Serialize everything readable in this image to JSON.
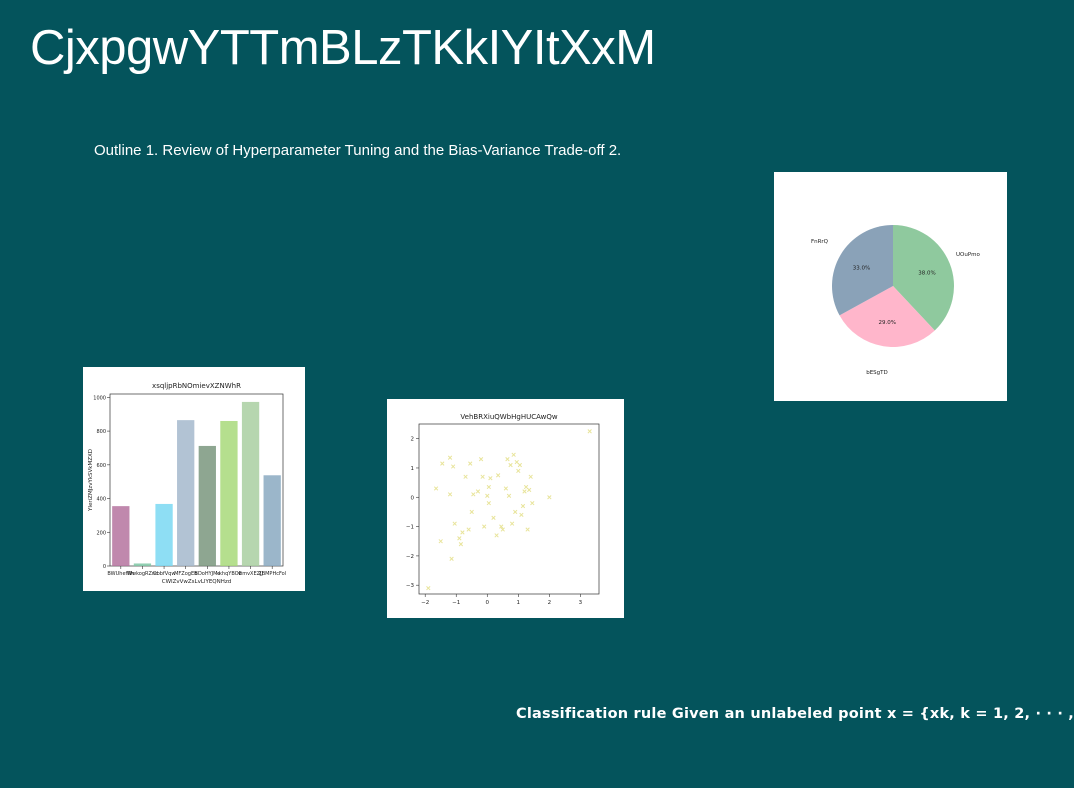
{
  "slide": {
    "title": "CjxpgwYTTmBLzTKkIYItXxM",
    "outline": "Outline 1. Review of Hyperparameter Tuning and the Bias-Variance Trade-off 2.",
    "bottom_text": "Classification rule Given an unlabeled point x = {xk, k = 1, 2, · · · ,"
  },
  "chart_data": [
    {
      "type": "bar",
      "title": "xsqljpRbNOmievXZNWhR",
      "xlabel": "CWIZvVwZsLvLlYEQNHzd",
      "ylabel": "YIeriZMJzvYkSVkMZXD",
      "categories": [
        "BWUhefNh",
        "WwkogRZnc",
        "ObbfVqw",
        "MFZogEb",
        "BDoHYJMs",
        "kkhqYBOE",
        "wmvXEZJJ",
        "ZBMPHcFol"
      ],
      "values": [
        355,
        15,
        368,
        865,
        712,
        860,
        973,
        538
      ],
      "colors": [
        "#b5739f",
        "#7fc7a5",
        "#7ad8f2",
        "#a4b8cc",
        "#7a967e",
        "#a8d97a",
        "#a9cfa1",
        "#8aa9c1"
      ],
      "ylim": [
        0,
        1020
      ],
      "yticks": [
        "0",
        "200",
        "400",
        "600",
        "800",
        "1000"
      ]
    },
    {
      "type": "scatter",
      "title": "VehBRXiuQWbHgHUCAwQw",
      "marker_color": "#e8e49a",
      "xlim": [
        -2.2,
        3.6
      ],
      "ylim": [
        -3.3,
        2.5
      ],
      "xticks": [
        "-2",
        "-1",
        "0",
        "1",
        "2",
        "3"
      ],
      "yticks": [
        "-3",
        "-2",
        "-1",
        "0",
        "1",
        "2"
      ],
      "points": [
        [
          -1.9,
          -3.1
        ],
        [
          -1.65,
          0.3
        ],
        [
          -1.5,
          -1.5
        ],
        [
          -1.45,
          1.15
        ],
        [
          -1.2,
          1.35
        ],
        [
          -1.2,
          0.1
        ],
        [
          -1.15,
          -2.1
        ],
        [
          -1.1,
          1.05
        ],
        [
          -1.05,
          -0.9
        ],
        [
          -0.9,
          -1.4
        ],
        [
          -0.85,
          -1.6
        ],
        [
          -0.8,
          -1.2
        ],
        [
          -0.7,
          0.7
        ],
        [
          -0.6,
          -1.1
        ],
        [
          -0.55,
          1.15
        ],
        [
          -0.5,
          -0.5
        ],
        [
          -0.45,
          0.1
        ],
        [
          -0.3,
          0.2
        ],
        [
          -0.2,
          1.3
        ],
        [
          -0.15,
          0.7
        ],
        [
          -0.1,
          -1.0
        ],
        [
          0.0,
          0.05
        ],
        [
          0.05,
          -0.2
        ],
        [
          0.05,
          0.35
        ],
        [
          0.1,
          0.65
        ],
        [
          0.2,
          -0.7
        ],
        [
          0.3,
          -1.3
        ],
        [
          0.35,
          0.75
        ],
        [
          0.45,
          -1.0
        ],
        [
          0.5,
          -1.1
        ],
        [
          0.6,
          0.3
        ],
        [
          0.65,
          1.3
        ],
        [
          0.7,
          0.05
        ],
        [
          0.75,
          1.1
        ],
        [
          0.8,
          -0.9
        ],
        [
          0.85,
          1.45
        ],
        [
          0.9,
          -0.5
        ],
        [
          0.95,
          1.2
        ],
        [
          1.0,
          0.9
        ],
        [
          1.05,
          1.1
        ],
        [
          1.1,
          -0.6
        ],
        [
          1.15,
          -0.3
        ],
        [
          1.2,
          0.2
        ],
        [
          1.25,
          0.35
        ],
        [
          1.3,
          -1.1
        ],
        [
          1.35,
          0.25
        ],
        [
          1.4,
          0.7
        ],
        [
          1.45,
          -0.2
        ],
        [
          2.0,
          0.0
        ],
        [
          3.3,
          2.25
        ]
      ]
    },
    {
      "type": "pie",
      "slices": [
        {
          "label": "UOuPmo",
          "value": 38.0,
          "pct": "38.0%",
          "color": "#8fc99e"
        },
        {
          "label": "bESgTD",
          "value": 29.0,
          "pct": "29.0%",
          "color": "#ffb6cb"
        },
        {
          "label": "FnRrQ",
          "value": 33.0,
          "pct": "33.0%",
          "color": "#8aa2b8"
        }
      ]
    }
  ]
}
